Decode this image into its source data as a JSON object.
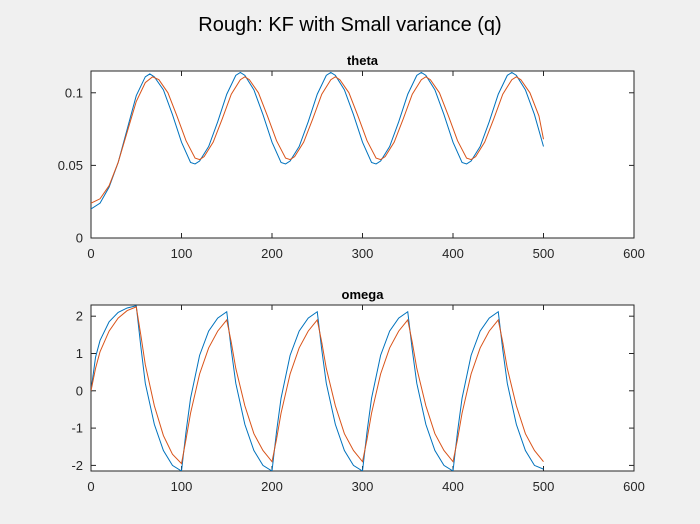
{
  "figure": {
    "title": "Rough: KF with Small variance (q)"
  },
  "chart_data": [
    {
      "type": "line",
      "title": "theta",
      "xlabel": "",
      "ylabel": "",
      "xlim": [
        0,
        600
      ],
      "ylim": [
        0,
        0.115
      ],
      "xticks": [
        "0",
        "100",
        "200",
        "300",
        "400",
        "500",
        "600"
      ],
      "yticks": [
        "0",
        "0.05",
        "0.1"
      ],
      "ytick_values": [
        0,
        0.05,
        0.1
      ],
      "xtick_values": [
        0,
        100,
        200,
        300,
        400,
        500,
        600
      ],
      "grid": false,
      "series": [
        {
          "color": "#0072bd",
          "x": [
            0,
            10,
            20,
            30,
            40,
            50,
            60,
            65,
            70,
            80,
            90,
            100,
            110,
            115,
            120,
            130,
            140,
            150,
            160,
            165,
            170,
            180,
            190,
            200,
            210,
            215,
            220,
            230,
            240,
            250,
            260,
            265,
            270,
            280,
            290,
            300,
            310,
            315,
            320,
            330,
            340,
            350,
            360,
            365,
            370,
            380,
            390,
            400,
            410,
            415,
            420,
            430,
            440,
            450,
            460,
            465,
            470,
            480,
            490,
            500
          ],
          "y": [
            0.02,
            0.024,
            0.035,
            0.052,
            0.075,
            0.098,
            0.111,
            0.113,
            0.111,
            0.102,
            0.085,
            0.066,
            0.052,
            0.051,
            0.053,
            0.063,
            0.08,
            0.099,
            0.112,
            0.114,
            0.112,
            0.102,
            0.085,
            0.066,
            0.052,
            0.051,
            0.053,
            0.063,
            0.08,
            0.099,
            0.112,
            0.114,
            0.112,
            0.102,
            0.085,
            0.066,
            0.052,
            0.051,
            0.053,
            0.063,
            0.08,
            0.099,
            0.112,
            0.114,
            0.112,
            0.102,
            0.085,
            0.066,
            0.052,
            0.051,
            0.053,
            0.063,
            0.08,
            0.099,
            0.112,
            0.114,
            0.112,
            0.102,
            0.085,
            0.063
          ]
        },
        {
          "color": "#d95319",
          "x": [
            0,
            10,
            20,
            30,
            40,
            50,
            60,
            68,
            75,
            85,
            95,
            105,
            115,
            120,
            125,
            135,
            145,
            155,
            165,
            170,
            175,
            185,
            195,
            205,
            215,
            220,
            225,
            235,
            245,
            255,
            265,
            270,
            275,
            285,
            295,
            305,
            315,
            320,
            325,
            335,
            345,
            355,
            365,
            370,
            375,
            385,
            395,
            405,
            415,
            420,
            425,
            435,
            445,
            455,
            465,
            470,
            475,
            485,
            495,
            500
          ],
          "y": [
            0.024,
            0.027,
            0.036,
            0.052,
            0.073,
            0.094,
            0.107,
            0.111,
            0.109,
            0.1,
            0.084,
            0.067,
            0.055,
            0.054,
            0.056,
            0.066,
            0.082,
            0.099,
            0.109,
            0.111,
            0.109,
            0.1,
            0.084,
            0.067,
            0.055,
            0.054,
            0.056,
            0.066,
            0.082,
            0.099,
            0.109,
            0.111,
            0.109,
            0.1,
            0.084,
            0.067,
            0.055,
            0.054,
            0.056,
            0.066,
            0.082,
            0.099,
            0.109,
            0.111,
            0.109,
            0.1,
            0.084,
            0.067,
            0.055,
            0.054,
            0.056,
            0.066,
            0.082,
            0.099,
            0.109,
            0.111,
            0.109,
            0.1,
            0.084,
            0.068
          ]
        }
      ]
    },
    {
      "type": "line",
      "title": "omega",
      "xlabel": "",
      "ylabel": "",
      "xlim": [
        0,
        600
      ],
      "ylim": [
        -2.15,
        2.3
      ],
      "xticks": [
        "0",
        "100",
        "200",
        "300",
        "400",
        "500",
        "600"
      ],
      "yticks": [
        "2",
        "1",
        "0",
        "-1",
        "-2"
      ],
      "ytick_values": [
        2,
        1,
        0,
        -1,
        -2
      ],
      "xtick_values": [
        0,
        100,
        200,
        300,
        400,
        500,
        600
      ],
      "grid": false,
      "series": [
        {
          "color": "#0072bd",
          "x": [
            0,
            5,
            10,
            20,
            30,
            40,
            50,
            55,
            60,
            70,
            80,
            90,
            100,
            105,
            110,
            120,
            130,
            140,
            150,
            155,
            160,
            170,
            180,
            190,
            200,
            205,
            210,
            220,
            230,
            240,
            250,
            255,
            260,
            270,
            280,
            290,
            300,
            305,
            310,
            320,
            330,
            340,
            350,
            355,
            360,
            370,
            380,
            390,
            400,
            405,
            410,
            420,
            430,
            440,
            450,
            455,
            460,
            470,
            480,
            490,
            500
          ],
          "y": [
            0.0,
            0.9,
            1.35,
            1.85,
            2.1,
            2.22,
            2.28,
            1.2,
            0.2,
            -0.9,
            -1.6,
            -2.0,
            -2.15,
            -1.1,
            -0.2,
            0.95,
            1.6,
            1.95,
            2.12,
            1.1,
            0.2,
            -0.9,
            -1.6,
            -2.0,
            -2.15,
            -1.1,
            -0.2,
            0.95,
            1.6,
            1.95,
            2.12,
            1.1,
            0.2,
            -0.9,
            -1.6,
            -2.0,
            -2.15,
            -1.1,
            -0.2,
            0.95,
            1.6,
            1.95,
            2.12,
            1.1,
            0.2,
            -0.9,
            -1.6,
            -2.0,
            -2.15,
            -1.1,
            -0.2,
            0.95,
            1.6,
            1.95,
            2.12,
            1.1,
            0.2,
            -0.9,
            -1.6,
            -2.0,
            -2.1
          ]
        },
        {
          "color": "#d95319",
          "x": [
            0,
            5,
            10,
            20,
            30,
            40,
            50,
            55,
            60,
            70,
            80,
            90,
            100,
            105,
            110,
            120,
            130,
            140,
            150,
            155,
            160,
            170,
            180,
            190,
            200,
            205,
            210,
            220,
            230,
            240,
            250,
            255,
            260,
            270,
            280,
            290,
            300,
            305,
            310,
            320,
            330,
            340,
            350,
            355,
            360,
            370,
            380,
            390,
            400,
            405,
            410,
            420,
            430,
            440,
            450,
            455,
            460,
            470,
            480,
            490,
            500
          ],
          "y": [
            0.0,
            0.6,
            1.05,
            1.6,
            1.95,
            2.15,
            2.25,
            1.5,
            0.7,
            -0.4,
            -1.2,
            -1.7,
            -1.95,
            -1.3,
            -0.6,
            0.45,
            1.15,
            1.6,
            1.9,
            1.3,
            0.6,
            -0.4,
            -1.15,
            -1.6,
            -1.9,
            -1.3,
            -0.6,
            0.45,
            1.15,
            1.6,
            1.9,
            1.3,
            0.6,
            -0.4,
            -1.15,
            -1.6,
            -1.9,
            -1.3,
            -0.6,
            0.45,
            1.15,
            1.6,
            1.9,
            1.3,
            0.6,
            -0.4,
            -1.15,
            -1.6,
            -1.9,
            -1.3,
            -0.6,
            0.45,
            1.15,
            1.6,
            1.9,
            1.3,
            0.6,
            -0.4,
            -1.15,
            -1.6,
            -1.9
          ]
        }
      ]
    }
  ]
}
